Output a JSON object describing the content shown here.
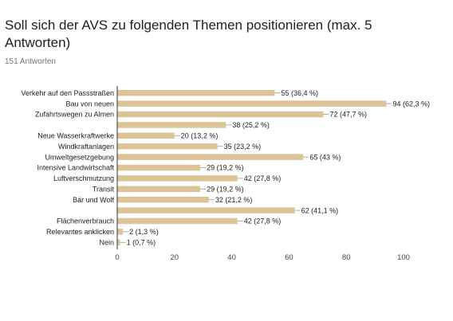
{
  "header": {
    "title": "Soll sich der AVS zu folgenden Themen positionieren (max. 5 Antworten)",
    "subtitle": "151 Antworten"
  },
  "colors": {
    "bar": "#dcc497",
    "axis": "#333333",
    "leader": "#999999",
    "grid": "#e0e0e0"
  },
  "chart_data": {
    "type": "bar",
    "orientation": "horizontal",
    "categories": [
      "Verkehr auf den Passstraßen",
      "Bau von neuen",
      "Zufahrtswegen zu Almen",
      "",
      "Neue Wasserkraftwerke",
      "Windkraftanlagen",
      "Umweltgesetzgebung",
      "Intensive Landwirtschaft",
      "Luftverschmutzung",
      "Transit",
      "Bär und Wolf",
      "",
      "Flächenverbrauch",
      "Relevantes anklicken",
      "Nein"
    ],
    "values": [
      55,
      94,
      72,
      38,
      20,
      35,
      65,
      29,
      42,
      29,
      32,
      62,
      42,
      2,
      1
    ],
    "value_labels": [
      "55 (36,4 %)",
      "94 (62,3 %)",
      "72 (47,7 %)",
      "38 (25,2 %)",
      "20 (13,2 %)",
      "35 (23,2 %)",
      "65 (43 %)",
      "29 (19,2 %)",
      "42 (27,8 %)",
      "29 (19,2 %)",
      "32 (21,2 %)",
      "62 (41,1 %)",
      "42 (27,8 %)",
      "2 (1,3 %)",
      "1 (0,7 %)"
    ],
    "xlim": [
      0,
      100
    ],
    "xticks": [
      "0",
      "20",
      "40",
      "60",
      "80",
      "100"
    ],
    "grid": false
  }
}
